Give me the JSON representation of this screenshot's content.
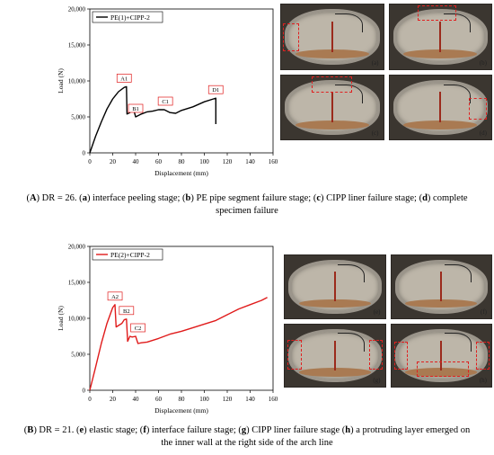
{
  "chart_data": [
    {
      "type": "line",
      "title": "",
      "xlabel": "Displacement (mm)",
      "ylabel": "Load (N)",
      "xlim": [
        0,
        160
      ],
      "ylim": [
        0,
        20000
      ],
      "xticks": [
        "0",
        "20",
        "40",
        "60",
        "80",
        "100",
        "120",
        "140",
        "160"
      ],
      "yticks": [
        "0",
        "5,000",
        "10,000",
        "15,000",
        "20,000"
      ],
      "grid": false,
      "legend_position": "top-left",
      "color": "#000000",
      "series": [
        {
          "name": "PE(1)+CIPP-2",
          "x": [
            0,
            5,
            10,
            15,
            20,
            25,
            30,
            32,
            32.5,
            35,
            38,
            40,
            45,
            50,
            55,
            60,
            65,
            70,
            75,
            80,
            90,
            100,
            108,
            110,
            110
          ],
          "y": [
            0,
            2300,
            4300,
            6100,
            7500,
            8500,
            9100,
            9200,
            5400,
            5600,
            6200,
            5000,
            5400,
            5700,
            5800,
            6000,
            6000,
            5600,
            5500,
            5900,
            6400,
            7100,
            7500,
            7600,
            4000
          ]
        }
      ],
      "annotations": [
        {
          "label": "A1",
          "x": 30,
          "y": 9200
        },
        {
          "label": "B1",
          "x": 40,
          "y": 5000
        },
        {
          "label": "C1",
          "x": 66,
          "y": 6000
        },
        {
          "label": "D1",
          "x": 110,
          "y": 7600
        }
      ]
    },
    {
      "type": "line",
      "title": "",
      "xlabel": "Displacement (mm)",
      "ylabel": "Load (N)",
      "xlim": [
        0,
        160
      ],
      "ylim": [
        0,
        20000
      ],
      "xticks": [
        "0",
        "20",
        "40",
        "60",
        "80",
        "100",
        "120",
        "140",
        "160"
      ],
      "yticks": [
        "0",
        "5,000",
        "10,000",
        "15,000",
        "20,000"
      ],
      "grid": false,
      "legend_position": "top-left",
      "color": "#e01b1b",
      "series": [
        {
          "name": "PE(2)+CIPP-2",
          "x": [
            0,
            5,
            10,
            15,
            20,
            22,
            23,
            28,
            30,
            32,
            33,
            35,
            37,
            40,
            42,
            45,
            50,
            60,
            70,
            80,
            90,
            100,
            110,
            120,
            130,
            140,
            150,
            155
          ],
          "y": [
            0,
            3200,
            6500,
            9300,
            11500,
            11900,
            8800,
            9300,
            9800,
            9900,
            6800,
            7500,
            7400,
            7500,
            6500,
            6600,
            6700,
            7200,
            7800,
            8200,
            8700,
            9200,
            9700,
            10500,
            11300,
            11900,
            12500,
            12900
          ]
        }
      ],
      "annotations": [
        {
          "label": "A2",
          "x": 22,
          "y": 11900
        },
        {
          "label": "B2",
          "x": 32,
          "y": 9900
        },
        {
          "label": "C2",
          "x": 42,
          "y": 7500
        }
      ]
    }
  ],
  "photos_top": [
    "(a)",
    "(b)",
    "(c)",
    "(d)"
  ],
  "photos_bottom": [
    "(e)",
    "(f)",
    "(g)",
    "(h)"
  ],
  "caption_top": {
    "l1_p1": "(",
    "l1_b1": "A",
    "l1_p2": ") DR = 26. (",
    "l1_b2": "a",
    "l1_p3": ") interface peeling stage; (",
    "l1_b3": "b",
    "l1_p4": ") PE pipe segment failure stage; (",
    "l1_b4": "c",
    "l1_p5": ") CIPP liner failure stage; (",
    "l1_b5": "d",
    "l1_p6": ") complete",
    "l2": "specimen failure"
  },
  "caption_bottom": {
    "l1_p1": "(",
    "l1_b1": "B",
    "l1_p2": ") DR = 21. (",
    "l1_b2": "e",
    "l1_p3": ") elastic stage; (",
    "l1_b3": "f",
    "l1_p4": ") interface failure stage; (",
    "l1_b4": "g",
    "l1_p5": ") CIPP liner failure stage (",
    "l1_b5": "h",
    "l1_p6": ") a protruding layer emerged on",
    "l2": "the inner wall at the right side of the arch line"
  }
}
